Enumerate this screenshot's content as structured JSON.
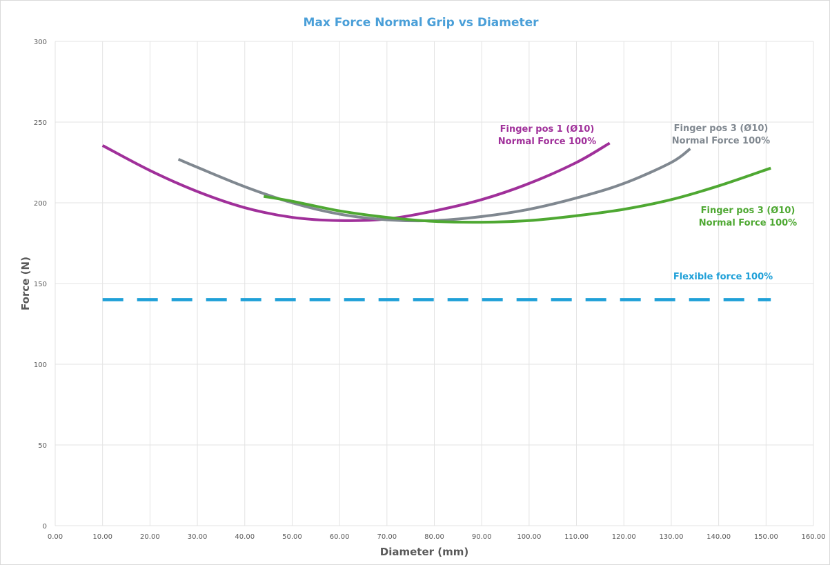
{
  "chart_data": {
    "type": "line",
    "title": "Max Force Normal Grip vs Diameter",
    "xlabel": "Diameter (mm)",
    "ylabel": "Force (N)",
    "xlim": [
      0,
      160
    ],
    "ylim": [
      0,
      300
    ],
    "xticks": [
      0,
      10,
      20,
      30,
      40,
      50,
      60,
      70,
      80,
      90,
      100,
      110,
      120,
      130,
      140,
      150,
      160
    ],
    "xtick_labels": [
      "0.00",
      "10.00",
      "20.00",
      "30.00",
      "40.00",
      "50.00",
      "60.00",
      "70.00",
      "80.00",
      "90.00",
      "100.00",
      "110.00",
      "120.00",
      "130.00",
      "140.00",
      "150.00",
      "160.00"
    ],
    "yticks": [
      0,
      50,
      100,
      150,
      200,
      250,
      300
    ],
    "ytick_labels": [
      "0",
      "50",
      "100",
      "150",
      "200",
      "250",
      "300"
    ],
    "grid": true,
    "title_color": "#4a9fd8",
    "series": [
      {
        "label_lines": [
          "Finger pos 1 (Ø10)",
          "Normal Force 100%"
        ],
        "color": "#a0309a",
        "dash": false,
        "x": [
          10,
          20,
          30,
          40,
          50,
          60,
          70,
          80,
          90,
          100,
          110,
          117
        ],
        "y": [
          235.5,
          220,
          207,
          197,
          191,
          189,
          190,
          195,
          202,
          212,
          225,
          237
        ]
      },
      {
        "label_lines": [
          "Finger pos 3 (Ø10)",
          "Normal Force 100%"
        ],
        "color": "#808890",
        "dash": false,
        "x": [
          26,
          30,
          40,
          50,
          60,
          70,
          80,
          90,
          100,
          110,
          120,
          130,
          134
        ],
        "y": [
          227,
          222,
          210,
          200,
          193,
          189.5,
          189,
          191.5,
          196,
          203,
          212,
          225,
          233.5
        ]
      },
      {
        "label_lines": [
          "Finger pos 3 (Ø10)",
          "Normal Force 100%"
        ],
        "color": "#4ea832",
        "dash": false,
        "x": [
          44,
          50,
          60,
          70,
          80,
          90,
          100,
          110,
          120,
          130,
          140,
          151
        ],
        "y": [
          204,
          201,
          195,
          191,
          188.5,
          188,
          189,
          192,
          196,
          202,
          210.5,
          221.5
        ]
      },
      {
        "label_lines": [
          "Flexible force 100%"
        ],
        "color": "#1fa0d8",
        "dash": true,
        "x": [
          10,
          151
        ],
        "y": [
          140,
          140
        ]
      }
    ]
  }
}
